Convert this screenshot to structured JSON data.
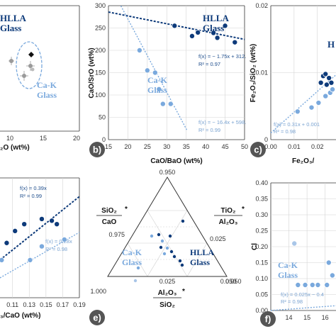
{
  "colors": {
    "hlla": "#0d3a7a",
    "cak": "#7aa9dd",
    "cak_light": "#a9c6e8",
    "grey": "#9a9a9a",
    "grid": "#d4d4d4",
    "badge": "#555555"
  },
  "panels": [
    {
      "id": "a",
      "badge": "",
      "xlabel": "₂O (wt%)",
      "ylabel": "",
      "x_ticks": [
        "10",
        "15",
        "20"
      ],
      "annotations": {
        "hlla": [
          "HLLA",
          "Glass"
        ],
        "cak": [
          "Ca-K",
          "Glass"
        ]
      }
    },
    {
      "id": "b",
      "badge": "b)",
      "xlabel": "CaO/BaO (wt%)",
      "ylabel": "CaO/SrO (wt%)",
      "x_ticks": [
        "15",
        "20",
        "25",
        "30",
        "35",
        "40",
        "45",
        "50"
      ],
      "y_ticks": [
        "0",
        "50",
        "100",
        "150",
        "200",
        "250",
        "300"
      ],
      "annotations": {
        "hlla": [
          "HLLA",
          "Glass"
        ],
        "cak": [
          "Ca-K",
          "Glass"
        ],
        "fit_hlla": [
          "f(x) = − 1.75x + 312.",
          "R² = 0.97"
        ],
        "fit_cak": [
          "f(x) = − 16.4x + 598.",
          "R² = 0.99"
        ]
      }
    },
    {
      "id": "c",
      "badge": "c)",
      "xlabel": "Fe₂O₃/",
      "ylabel": "Fe₂O₃/SiO₂ (wt%)",
      "x_ticks": [
        "0.00",
        "0.01",
        "0.02"
      ],
      "y_ticks": [
        "0",
        "0.01",
        "0.02"
      ],
      "annotations": {
        "hlla": [
          "H"
        ],
        "fit_cak": [
          "f(x) = 0.31x + 0.001",
          "R² = 0.98"
        ]
      }
    },
    {
      "id": "d",
      "badge": "",
      "xlabel": "₃/CaO (wt%)",
      "ylabel": "",
      "x_ticks": [
        "0.11",
        "0.13",
        "0.15",
        "0.17",
        "0.19"
      ],
      "annotations": {
        "fit_hlla": [
          "f(x) = 0.39x",
          "R² = 0.99"
        ],
        "fit_cak": [
          "f(x) = 0.28x",
          "R² = 0.98"
        ]
      }
    },
    {
      "id": "e",
      "badge": "e)",
      "top_vertex": "0.950",
      "left_labels": [
        "0.975",
        "1.000"
      ],
      "right_labels": [
        "0.025",
        "0.050"
      ],
      "bottom_labels": [
        "0.025",
        "0.050"
      ],
      "label_left": [
        "SiO₂",
        "CaO",
        "*"
      ],
      "label_right": [
        "TiO₂",
        "Al₂O₃",
        "*"
      ],
      "label_bottom": [
        "Al₂O₃",
        "SiO₂",
        "*"
      ],
      "annotations": {
        "hlla": [
          "HLLA",
          "Glass"
        ],
        "cak": [
          "Ca-K",
          "Glass"
        ]
      }
    },
    {
      "id": "f",
      "badge": "f)",
      "xlabel": "",
      "ylabel": "Cl",
      "x_ticks": [
        "13",
        "14",
        "15",
        "16"
      ],
      "y_ticks": [
        "0.00",
        "0.05",
        "0.10",
        "0.15",
        "0.20",
        "0.25",
        "0.30",
        "0.35",
        "0.40"
      ],
      "annotations": {
        "cak": [
          "Ca-K",
          "Glass"
        ],
        "fit_cak": [
          "f(x) = 0.025x − 0.4",
          "R² = 0.98"
        ]
      }
    }
  ],
  "chart_data": [
    {
      "panel": "a",
      "type": "scatter",
      "x_range": [
        7,
        20
      ],
      "x_ticks": [
        10,
        15,
        20
      ],
      "series": [
        {
          "group": "HLLA Glass",
          "points": []
        },
        {
          "group": "Ca-K Glass",
          "points": [
            [
              10.2,
              6.1
            ],
            [
              11.9,
              4.8
            ],
            [
              12.8,
              7.2
            ],
            [
              13.1,
              6.5
            ],
            [
              13.4,
              5.8
            ]
          ]
        }
      ],
      "cak_ellipse": {
        "cx": 13.0,
        "cy": 6.6,
        "rx": 2.0,
        "ry": 2.6
      }
    },
    {
      "panel": "b",
      "type": "scatter",
      "x_range": [
        15,
        50
      ],
      "y_range": [
        0,
        300
      ],
      "x_ticks": [
        15,
        20,
        25,
        30,
        35,
        40,
        45,
        50
      ],
      "y_ticks": [
        0,
        50,
        100,
        150,
        200,
        250,
        300
      ],
      "series": [
        {
          "group": "HLLA Glass",
          "points": [
            [
              32,
              255
            ],
            [
              36.5,
              232
            ],
            [
              38,
              240
            ],
            [
              42,
              239
            ],
            [
              43,
              228
            ],
            [
              45,
              255
            ],
            [
              47.5,
              218
            ]
          ]
        },
        {
          "group": "Ca-K Glass",
          "points": [
            [
              23,
              200
            ],
            [
              25,
              155
            ],
            [
              27,
              150
            ],
            [
              28,
              113
            ],
            [
              29,
              80
            ],
            [
              31,
              80
            ]
          ]
        }
      ],
      "fits": [
        {
          "group": "HLLA Glass",
          "slope": -1.75,
          "intercept": 312,
          "x": [
            15,
            50
          ]
        },
        {
          "group": "Ca-K Glass",
          "slope": -16.4,
          "intercept": 598,
          "x": [
            18.2,
            35.3
          ]
        }
      ]
    },
    {
      "panel": "c",
      "type": "scatter",
      "x_range": [
        0,
        0.028
      ],
      "y_range": [
        0,
        0.02
      ],
      "x_ticks": [
        0,
        0.01,
        0.02
      ],
      "y_ticks": [
        0,
        0.01,
        0.02
      ],
      "series": [
        {
          "group": "HLLA Glass",
          "points": [
            [
              0.0215,
              0.0085
            ],
            [
              0.0225,
              0.0095
            ],
            [
              0.0235,
              0.0098
            ],
            [
              0.024,
              0.0082
            ],
            [
              0.025,
              0.0092
            ],
            [
              0.026,
              0.0085
            ]
          ]
        },
        {
          "group": "Ca-K Glass",
          "points": [
            [
              0.0115,
              0.0042
            ],
            [
              0.0175,
              0.0048
            ],
            [
              0.0205,
              0.0055
            ],
            [
              0.0235,
              0.0065
            ],
            [
              0.0255,
              0.007
            ],
            [
              0.0265,
              0.0075
            ]
          ]
        }
      ],
      "fits": [
        {
          "group": "Ca-K Glass",
          "slope": 0.31,
          "intercept": 0.001,
          "x": [
            0,
            0.028
          ]
        }
      ]
    },
    {
      "panel": "d",
      "type": "scatter",
      "x_range": [
        0.095,
        0.19
      ],
      "y_range": [
        0.015,
        0.085
      ],
      "x_ticks": [
        0.11,
        0.13,
        0.15,
        0.17,
        0.19
      ],
      "series": [
        {
          "group": "HLLA Glass",
          "points": [
            [
              0.103,
              0.047
            ],
            [
              0.113,
              0.054
            ],
            [
              0.124,
              0.058
            ],
            [
              0.145,
              0.061
            ],
            [
              0.157,
              0.06
            ],
            [
              0.163,
              0.058
            ]
          ]
        },
        {
          "group": "Ca-K Glass",
          "points": [
            [
              0.097,
              0.037
            ],
            [
              0.131,
              0.037
            ],
            [
              0.145,
              0.045
            ],
            [
              0.172,
              0.049
            ]
          ]
        }
      ],
      "fits": [
        {
          "group": "HLLA Glass",
          "slope": 0.39,
          "intercept": 0,
          "x": [
            0.095,
            0.19
          ]
        },
        {
          "group": "Ca-K Glass",
          "slope": 0.28,
          "intercept": 0,
          "x": [
            0.095,
            0.19
          ]
        }
      ]
    },
    {
      "panel": "e",
      "type": "scatter",
      "axes": [
        "SiO₂/CaO",
        "TiO₂/Al₂O₃",
        "Al₂O₃/SiO₂"
      ],
      "series": [
        {
          "group": "HLLA Glass",
          "points": [
            [
              0.965,
              0.022,
              0.013
            ],
            [
              0.97,
              0.018,
              0.012
            ],
            [
              0.972,
              0.017,
              0.011
            ],
            [
              0.974,
              0.011,
              0.015
            ],
            [
              0.976,
              0.01,
              0.014
            ],
            [
              0.981,
              0.011,
              0.008
            ],
            [
              0.983,
              0.008,
              0.009
            ],
            [
              0.984,
              0.007,
              0.009
            ]
          ]
        },
        {
          "group": "Ca-K Glass",
          "points": [
            [
              0.972,
              0.015,
              0.013
            ],
            [
              0.974,
              0.015,
              0.011
            ],
            [
              0.976,
              0.013,
              0.011
            ],
            [
              0.977,
              0.006,
              0.017
            ],
            [
              0.983,
              0.012,
              0.005
            ],
            [
              0.984,
              0.002,
              0.014
            ]
          ]
        }
      ]
    },
    {
      "panel": "f",
      "type": "scatter",
      "x_range": [
        13,
        16.6
      ],
      "y_range": [
        0,
        0.4
      ],
      "x_ticks": [
        13,
        14,
        15,
        16
      ],
      "y_ticks": [
        0,
        0.05,
        0.1,
        0.15,
        0.2,
        0.25,
        0.3,
        0.35,
        0.4
      ],
      "series": [
        {
          "group": "Ca-K Glass",
          "points": [
            [
              14.3,
              0.21
            ],
            [
              14.5,
              0.08
            ],
            [
              14.9,
              0.08
            ],
            [
              15.3,
              0.08
            ],
            [
              15.6,
              0.08
            ],
            [
              16.1,
              0.08
            ],
            [
              16.4,
              0.11
            ],
            [
              16.2,
              0.15
            ]
          ]
        }
      ],
      "fits": [
        {
          "group": "Ca-K Glass",
          "slope": 0.025,
          "intercept": -0.4,
          "x": [
            13,
            16.6
          ]
        }
      ]
    }
  ]
}
